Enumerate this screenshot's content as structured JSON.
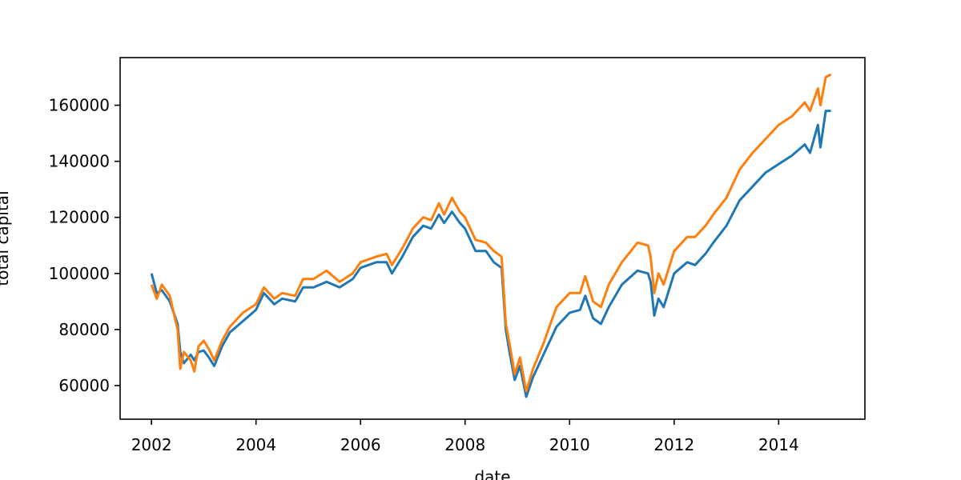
{
  "chart_data": {
    "type": "line",
    "title": "",
    "xlabel": "date",
    "ylabel": "total capital",
    "xlim": [
      2001.4,
      2015.65
    ],
    "ylim": [
      48000,
      177000
    ],
    "grid": false,
    "legend": "none",
    "x_ticks": [
      2002,
      2004,
      2006,
      2008,
      2010,
      2012,
      2014
    ],
    "x_tick_labels": [
      "2002",
      "2004",
      "2006",
      "2008",
      "2010",
      "2012",
      "2014"
    ],
    "y_ticks": [
      60000,
      80000,
      100000,
      120000,
      140000,
      160000
    ],
    "y_tick_labels": [
      "60000",
      "80000",
      "100000",
      "120000",
      "140000",
      "160000"
    ],
    "series": [
      {
        "color": "#1f77b4",
        "x": [
          2002.0,
          2002.1,
          2002.2,
          2002.35,
          2002.5,
          2002.55,
          2002.62,
          2002.75,
          2002.82,
          2002.9,
          2003.0,
          2003.1,
          2003.2,
          2003.35,
          2003.5,
          2003.75,
          2004.0,
          2004.15,
          2004.35,
          2004.5,
          2004.75,
          2004.9,
          2005.1,
          2005.35,
          2005.6,
          2005.85,
          2006.0,
          2006.3,
          2006.5,
          2006.6,
          2006.8,
          2007.0,
          2007.2,
          2007.35,
          2007.5,
          2007.6,
          2007.75,
          2007.9,
          2008.0,
          2008.2,
          2008.4,
          2008.55,
          2008.7,
          2008.78,
          2008.85,
          2008.95,
          2009.05,
          2009.17,
          2009.3,
          2009.5,
          2009.75,
          2010.0,
          2010.2,
          2010.3,
          2010.45,
          2010.6,
          2010.75,
          2011.0,
          2011.3,
          2011.5,
          2011.55,
          2011.62,
          2011.7,
          2011.8,
          2012.0,
          2012.25,
          2012.4,
          2012.6,
          2012.75,
          2013.0,
          2013.25,
          2013.5,
          2013.75,
          2014.0,
          2014.25,
          2014.5,
          2014.6,
          2014.75,
          2014.8,
          2014.9,
          2015.0
        ],
        "y": [
          100000,
          93000,
          94000,
          90000,
          82000,
          72000,
          68000,
          71000,
          69000,
          72000,
          72500,
          70000,
          67000,
          74000,
          79000,
          83000,
          87000,
          93000,
          89000,
          91000,
          90000,
          95000,
          95000,
          97000,
          95000,
          98000,
          102000,
          104000,
          104000,
          100000,
          106000,
          113000,
          117000,
          116000,
          121000,
          118000,
          122000,
          118000,
          116000,
          108000,
          108000,
          104000,
          102000,
          80000,
          72000,
          62000,
          67000,
          56000,
          63000,
          71000,
          81000,
          86000,
          87000,
          92000,
          84000,
          82000,
          88000,
          96000,
          101000,
          100000,
          97000,
          85000,
          91000,
          88000,
          100000,
          104000,
          103000,
          107000,
          111000,
          117000,
          126000,
          131000,
          136000,
          139000,
          142000,
          146000,
          143000,
          153000,
          145000,
          158000,
          158000
        ]
      },
      {
        "color": "#ff7f0e",
        "x": [
          2002.0,
          2002.1,
          2002.2,
          2002.35,
          2002.5,
          2002.55,
          2002.62,
          2002.75,
          2002.82,
          2002.9,
          2003.0,
          2003.1,
          2003.2,
          2003.35,
          2003.5,
          2003.75,
          2004.0,
          2004.15,
          2004.35,
          2004.5,
          2004.75,
          2004.9,
          2005.1,
          2005.35,
          2005.6,
          2005.85,
          2006.0,
          2006.3,
          2006.5,
          2006.6,
          2006.8,
          2007.0,
          2007.2,
          2007.35,
          2007.5,
          2007.6,
          2007.75,
          2007.9,
          2008.0,
          2008.2,
          2008.4,
          2008.55,
          2008.7,
          2008.78,
          2008.85,
          2008.95,
          2009.05,
          2009.17,
          2009.3,
          2009.5,
          2009.75,
          2010.0,
          2010.2,
          2010.3,
          2010.45,
          2010.6,
          2010.75,
          2011.0,
          2011.3,
          2011.5,
          2011.55,
          2011.62,
          2011.7,
          2011.8,
          2012.0,
          2012.25,
          2012.4,
          2012.6,
          2012.75,
          2013.0,
          2013.25,
          2013.5,
          2013.75,
          2014.0,
          2014.25,
          2014.5,
          2014.6,
          2014.75,
          2014.8,
          2014.9,
          2015.0
        ],
        "y": [
          96000,
          91000,
          96000,
          92000,
          80000,
          66000,
          72000,
          69000,
          65000,
          74000,
          76000,
          73000,
          69000,
          76000,
          81000,
          86000,
          89000,
          95000,
          91000,
          93000,
          92000,
          98000,
          98000,
          101000,
          97000,
          100000,
          104000,
          106000,
          107000,
          103000,
          109000,
          116000,
          120000,
          119000,
          125000,
          121000,
          127000,
          122000,
          120000,
          112000,
          111000,
          108000,
          106000,
          82000,
          75000,
          64000,
          70000,
          58000,
          66000,
          75000,
          88000,
          93000,
          93000,
          99000,
          90000,
          88000,
          96000,
          104000,
          111000,
          110000,
          106000,
          93000,
          100000,
          96000,
          108000,
          113000,
          113000,
          117000,
          121000,
          127000,
          137000,
          143000,
          148000,
          153000,
          156000,
          161000,
          158000,
          166000,
          160000,
          170000,
          171000
        ]
      }
    ]
  }
}
